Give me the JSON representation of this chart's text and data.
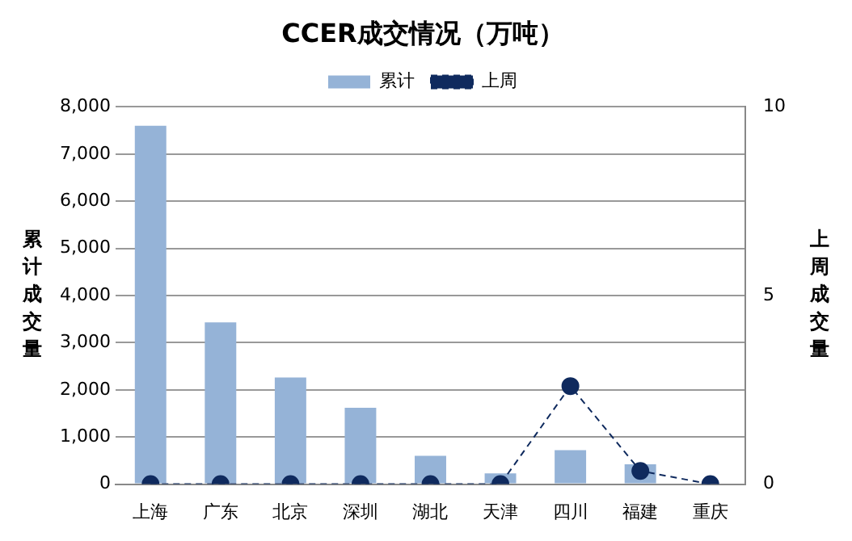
{
  "chart_data": {
    "type": "bar",
    "title": "CCER成交情况（万吨）",
    "ylabel": "累计成交量",
    "y2label": "上周成交量",
    "categories": [
      "上海",
      "广东",
      "北京",
      "深圳",
      "湖北",
      "天津",
      "四川",
      "福建",
      "重庆"
    ],
    "series": [
      {
        "name": "累计",
        "color": "#95b3d7",
        "values": [
          7600,
          3430,
          2260,
          1620,
          600,
          230,
          720,
          420,
          null
        ]
      },
      {
        "name": "上周",
        "type": "line",
        "axis": "y2",
        "color": "#0f2a5e",
        "marker": "circle",
        "line_style": "dashed",
        "values": [
          0,
          0,
          0,
          0,
          0,
          0,
          2.6,
          0.35,
          0
        ]
      }
    ],
    "ylim": [
      0,
      8000
    ],
    "yticks": [
      {
        "value": 0,
        "label": "0"
      },
      {
        "value": 1000,
        "label": "1,000"
      },
      {
        "value": 2000,
        "label": "2,000"
      },
      {
        "value": 3000,
        "label": "3,000"
      },
      {
        "value": 4000,
        "label": "4,000"
      },
      {
        "value": 5000,
        "label": "5,000"
      },
      {
        "value": 6000,
        "label": "6,000"
      },
      {
        "value": 7000,
        "label": "7,000"
      },
      {
        "value": 8000,
        "label": "8,000"
      }
    ],
    "y2lim": [
      0,
      10
    ],
    "y2ticks": [
      0,
      5,
      10
    ],
    "grid": "y",
    "legend": "top"
  }
}
